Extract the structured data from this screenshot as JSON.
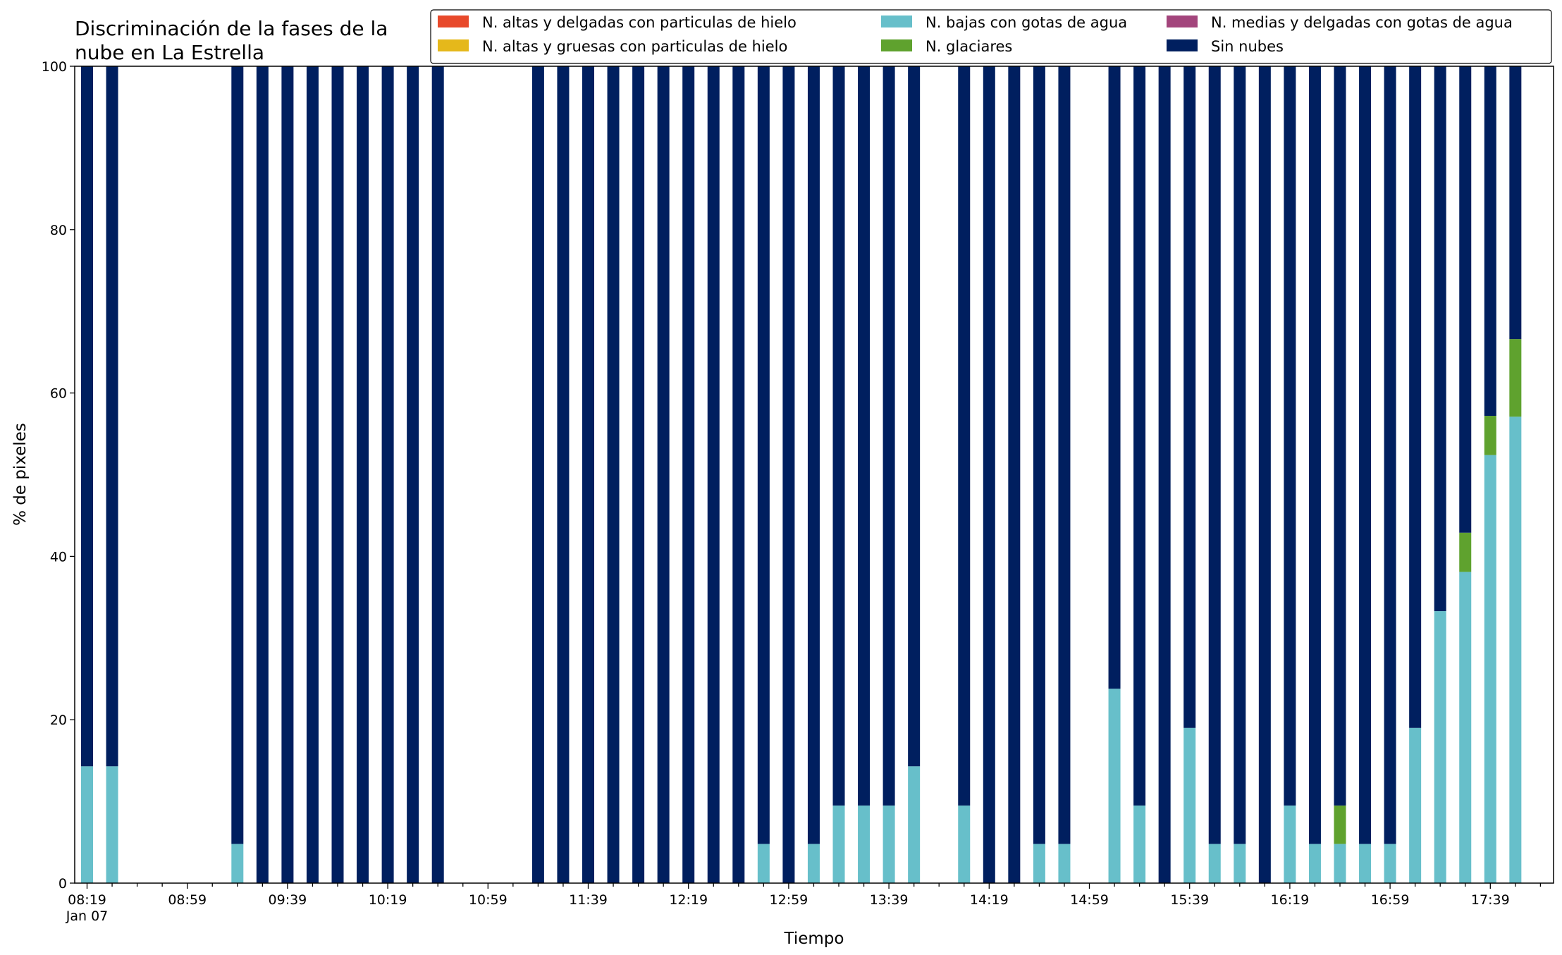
{
  "chart_data": {
    "type": "bar",
    "stacked": true,
    "title_lines": [
      "Discriminación de la fases de la",
      "nube en La Estrella"
    ],
    "xlabel": "Tiempo",
    "ylabel": "% de pixeles",
    "ylim": [
      0,
      100
    ],
    "yticks": [
      0,
      20,
      40,
      60,
      80,
      100
    ],
    "x_ticklabels": [
      {
        "slot": 0,
        "label": "08:19",
        "sublabel": "Jan 07"
      },
      {
        "slot": 4,
        "label": "08:59"
      },
      {
        "slot": 8,
        "label": "09:39"
      },
      {
        "slot": 12,
        "label": "10:19"
      },
      {
        "slot": 16,
        "label": "10:59"
      },
      {
        "slot": 20,
        "label": "11:39"
      },
      {
        "slot": 24,
        "label": "12:19"
      },
      {
        "slot": 28,
        "label": "12:59"
      },
      {
        "slot": 32,
        "label": "13:39"
      },
      {
        "slot": 36,
        "label": "14:19"
      },
      {
        "slot": 40,
        "label": "14:59"
      },
      {
        "slot": 44,
        "label": "15:39"
      },
      {
        "slot": 48,
        "label": "16:19"
      },
      {
        "slot": 52,
        "label": "16:59"
      },
      {
        "slot": 56,
        "label": "17:39"
      }
    ],
    "legend": {
      "placement": "upper-right",
      "ncol": 3
    },
    "series": [
      {
        "name": "N. altas y delgadas con particulas de hielo",
        "color": "#e8492b",
        "values": [
          null,
          null,
          null,
          null,
          null,
          null,
          null,
          null,
          null,
          null,
          null,
          null,
          null,
          null,
          null,
          null,
          null,
          null,
          null,
          null,
          null,
          null,
          null,
          null,
          null,
          null,
          null,
          null,
          null,
          null,
          null,
          null,
          null,
          null,
          null,
          null,
          null,
          null,
          null,
          null,
          null,
          null,
          null,
          null,
          null,
          null,
          null,
          null,
          null,
          null,
          null,
          null,
          null,
          null,
          null,
          null,
          null,
          null
        ]
      },
      {
        "name": "N. altas y gruesas con particulas de hielo",
        "color": "#e5b81b",
        "values": [
          null,
          null,
          null,
          null,
          null,
          null,
          null,
          null,
          null,
          null,
          null,
          null,
          null,
          null,
          null,
          null,
          null,
          null,
          null,
          null,
          null,
          null,
          null,
          null,
          null,
          null,
          null,
          null,
          null,
          null,
          null,
          null,
          null,
          null,
          null,
          null,
          null,
          null,
          null,
          null,
          null,
          null,
          null,
          null,
          null,
          null,
          null,
          null,
          null,
          null,
          null,
          null,
          null,
          null,
          null,
          null,
          null,
          null
        ]
      },
      {
        "name": "N. bajas con gotas de agua",
        "color": "#67bfca",
        "values": [
          14.3,
          14.3,
          null,
          null,
          null,
          null,
          4.8,
          0,
          0,
          0,
          0,
          0,
          0,
          0,
          0,
          null,
          null,
          null,
          0,
          0,
          0,
          0,
          0,
          0,
          0,
          0,
          0,
          4.8,
          0,
          4.8,
          9.5,
          9.5,
          9.5,
          14.3,
          null,
          9.5,
          0,
          0,
          4.8,
          4.8,
          null,
          23.8,
          9.5,
          0,
          19.0,
          4.8,
          4.8,
          0,
          9.5,
          4.8,
          4.8,
          4.8,
          4.8,
          19.0,
          33.3,
          38.1,
          52.4,
          57.1
        ]
      },
      {
        "name": "N. glaciares",
        "color": "#5fa22e",
        "values": [
          0,
          0,
          null,
          null,
          null,
          null,
          0,
          0,
          0,
          0,
          0,
          0,
          0,
          0,
          0,
          null,
          null,
          null,
          0,
          0,
          0,
          0,
          0,
          0,
          0,
          0,
          0,
          0,
          0,
          0,
          0,
          0,
          0,
          0,
          null,
          0,
          0,
          0,
          0,
          0,
          null,
          0,
          0,
          0,
          0,
          0,
          0,
          0,
          0,
          0,
          4.7,
          0,
          0,
          0,
          0,
          4.8,
          4.8,
          9.5
        ]
      },
      {
        "name": "N. medias y delgadas con gotas de agua",
        "color": "#a3457c",
        "values": [
          null,
          null,
          null,
          null,
          null,
          null,
          null,
          null,
          null,
          null,
          null,
          null,
          null,
          null,
          null,
          null,
          null,
          null,
          null,
          null,
          null,
          null,
          null,
          null,
          null,
          null,
          null,
          null,
          null,
          null,
          null,
          null,
          null,
          null,
          null,
          null,
          null,
          null,
          null,
          null,
          null,
          null,
          null,
          null,
          null,
          null,
          null,
          null,
          null,
          null,
          null,
          null,
          null,
          null,
          null,
          null,
          null,
          null
        ]
      },
      {
        "name": "Sin nubes",
        "color": "#001f5f",
        "values": [
          85.7,
          85.7,
          null,
          null,
          null,
          null,
          95.2,
          100,
          100,
          100,
          100,
          100,
          100,
          100,
          100,
          null,
          null,
          null,
          100,
          100,
          100,
          100,
          100,
          100,
          100,
          100,
          100,
          95.2,
          100,
          95.2,
          90.5,
          90.5,
          90.5,
          85.7,
          null,
          90.5,
          100,
          100,
          95.2,
          95.2,
          null,
          76.2,
          90.5,
          100,
          81.0,
          95.2,
          95.2,
          100,
          90.5,
          95.2,
          90.5,
          95.2,
          95.2,
          81.0,
          66.7,
          57.1,
          42.8,
          33.4
        ]
      }
    ]
  }
}
